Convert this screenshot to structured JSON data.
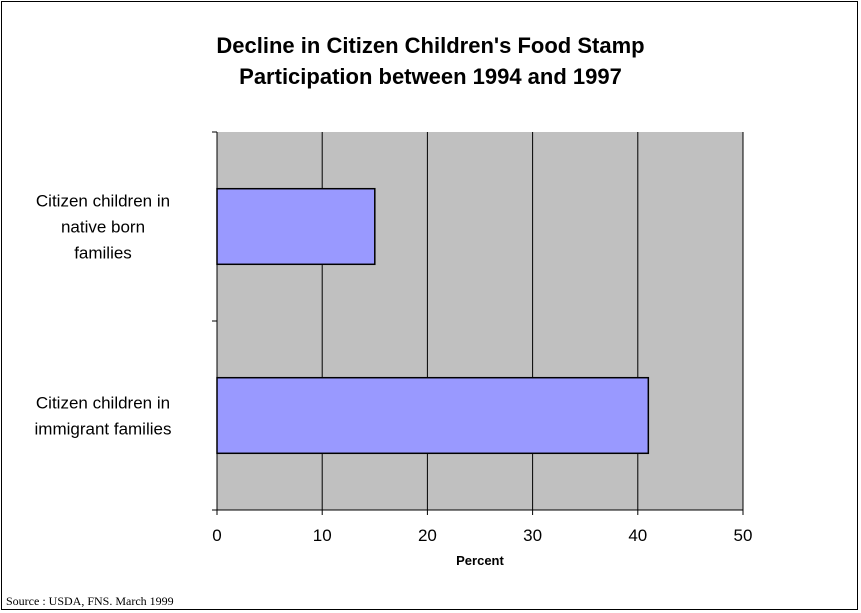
{
  "chart_data": {
    "type": "bar",
    "orientation": "horizontal",
    "title_lines": [
      "Decline in Citizen Children's Food Stamp",
      "Participation between 1994 and 1997"
    ],
    "categories": [
      [
        "Citizen children in",
        "native born",
        "families"
      ],
      [
        "Citizen children in",
        "immigrant families"
      ]
    ],
    "values": [
      15,
      41
    ],
    "xlabel": "Percent",
    "ylabel": "",
    "xlim": [
      0,
      50
    ],
    "xticks": [
      "0",
      "10",
      "20",
      "30",
      "40",
      "50"
    ],
    "grid": true,
    "colors": {
      "bar_fill": "#9999ff",
      "plot_background": "#c0c0c0",
      "gridline": "#000000"
    }
  },
  "source": "Source : USDA, FNS. March 1999"
}
